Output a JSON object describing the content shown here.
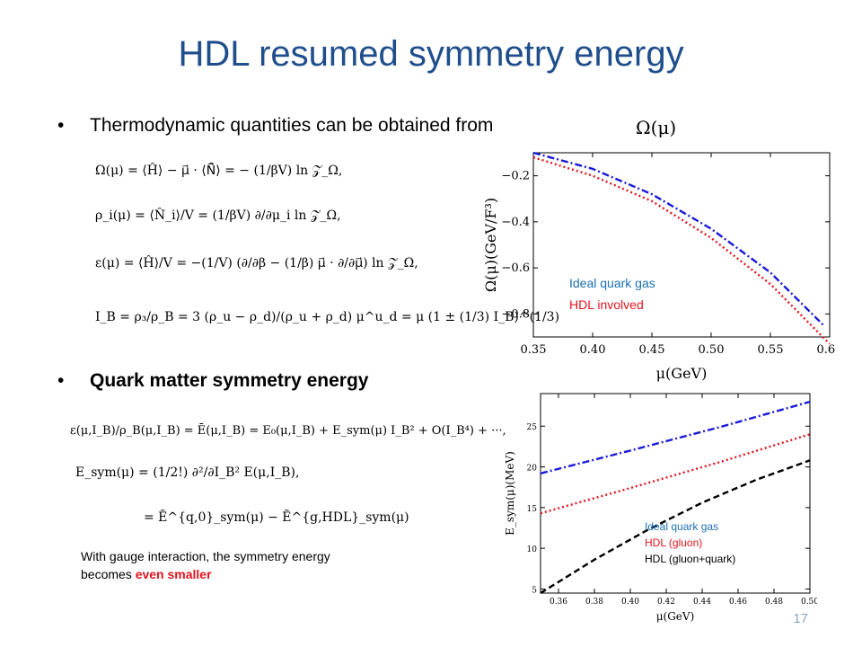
{
  "title": "HDL resumed symmetry energy",
  "bullets": {
    "b1": "Thermodynamic quantities can be obtained from",
    "b1_formula": "Ω(μ)",
    "b2": "Quark matter symmetry energy"
  },
  "equations": {
    "e1": "Ω(μ) = ⟨Ĥ⟩ − μ⃗ · ⟨N̂⃗⟩ = − (1/βV) ln 𝒵_Ω,",
    "e2": "ρ_i(μ) = ⟨N̂_i⟩/V = (1/βV) ∂/∂μ_i ln 𝒵_Ω,",
    "e3": "ε(μ) = ⟨Ĥ⟩/V = −(1/V) (∂/∂β − (1/β) μ⃗ · ∂/∂μ⃗) ln 𝒵_Ω,",
    "e4": "I_B = ρ₃/ρ_B = 3 (ρ_u − ρ_d)/(ρ_u + ρ_d)    μ^u_d = μ (1 ± (1/3) I_B)^(1/3)",
    "e5": "ε(μ,I_B)/ρ_B(μ,I_B) = Ē(μ,I_B) = E₀(μ,I_B) + E_sym(μ) I_B² + O(I_B⁴) + ···,",
    "e6": "E_sym(μ) = (1/2!) ∂²/∂I_B² E(μ,I_B),",
    "e7": "= Ẽ^{q,0}_sym(μ) − Ẽ^{g,HDL}_sym(μ)"
  },
  "note": {
    "line1": "With gauge interaction, the symmetry energy",
    "line2_prefix": "becomes ",
    "line2_highlight": "even smaller"
  },
  "page_number": "17",
  "colors": {
    "title": "#1f4e8c",
    "blue": "#1a1ad6",
    "red": "#e0141e",
    "black": "#000000",
    "legend_blue": "#1a6fb5"
  },
  "chart_data": [
    {
      "type": "line",
      "title": "",
      "xlabel": "μ(GeV)",
      "ylabel": "Ω(μ)(GeV/F³)",
      "xlim": [
        0.35,
        0.6
      ],
      "ylim": [
        -0.9,
        -0.1
      ],
      "xticks": [
        "0.35",
        "0.40",
        "0.45",
        "0.50",
        "0.55",
        "0.60"
      ],
      "yticks": [
        "−0.2",
        "−0.4",
        "−0.6",
        "−0.8"
      ],
      "ytick_values": [
        -0.2,
        -0.4,
        -0.6,
        -0.8
      ],
      "legend": {
        "position": "lower-left",
        "entries": [
          "Ideal quark gas",
          "HDL involved"
        ]
      },
      "series": [
        {
          "name": "Ideal quark gas",
          "color": "#1a1ad6",
          "dash": "dashdot",
          "x": [
            0.35,
            0.4,
            0.45,
            0.5,
            0.55,
            0.595
          ],
          "y": [
            -0.1,
            -0.17,
            -0.28,
            -0.43,
            -0.62,
            -0.85
          ]
        },
        {
          "name": "HDL involved",
          "color": "#e0141e",
          "dash": "dot",
          "x": [
            0.35,
            0.4,
            0.45,
            0.5,
            0.55,
            0.6
          ],
          "y": [
            -0.12,
            -0.2,
            -0.31,
            -0.47,
            -0.67,
            -0.93
          ]
        }
      ]
    },
    {
      "type": "line",
      "title": "",
      "xlabel": "μ(GeV)",
      "ylabel": "E_sym(μ)(MeV)",
      "xlim": [
        0.35,
        0.5
      ],
      "ylim": [
        4.5,
        29
      ],
      "xticks": [
        "0.36",
        "0.38",
        "0.40",
        "0.42",
        "0.44",
        "0.46",
        "0.48",
        "0.50"
      ],
      "yticks": [
        "5",
        "10",
        "15",
        "20",
        "25"
      ],
      "ytick_values": [
        5,
        10,
        15,
        20,
        25
      ],
      "legend": {
        "position": "bottom-right",
        "entries": [
          "Ideal quark gas",
          "HDL (gluon)",
          "HDL (gluon+quark)"
        ]
      },
      "series": [
        {
          "name": "Ideal quark gas",
          "color": "#1a1ad6",
          "dash": "dashdot",
          "x": [
            0.35,
            0.4,
            0.45,
            0.5
          ],
          "y": [
            19.2,
            22.0,
            24.9,
            28.0
          ]
        },
        {
          "name": "HDL (gluon)",
          "color": "#e0141e",
          "dash": "dot",
          "x": [
            0.35,
            0.4,
            0.45,
            0.5
          ],
          "y": [
            14.3,
            17.4,
            20.6,
            24.0
          ]
        },
        {
          "name": "HDL (gluon+quark)",
          "color": "#000000",
          "dash": "dash",
          "x": [
            0.35,
            0.38,
            0.41,
            0.44,
            0.47,
            0.5
          ],
          "y": [
            4.5,
            8.6,
            12.3,
            15.6,
            18.4,
            20.8
          ]
        }
      ]
    }
  ]
}
